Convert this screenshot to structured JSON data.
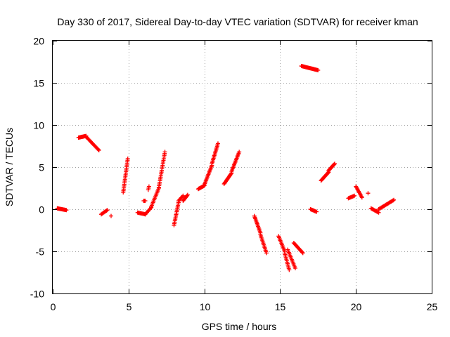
{
  "chart_data": {
    "type": "scatter",
    "title": "Day 330 of 2017, Sidereal Day-to-day VTEC variation (SDTVAR) for receiver kman",
    "xlabel": "GPS time / hours",
    "ylabel": "SDTVAR / TECUs",
    "xlim": [
      0,
      25
    ],
    "ylim": [
      -10,
      20
    ],
    "xticks": [
      0,
      5,
      10,
      15,
      20,
      25
    ],
    "yticks": [
      -10,
      -5,
      0,
      5,
      10,
      15,
      20
    ],
    "xtick_labels": [
      "0",
      "5",
      "10",
      "15",
      "20",
      "25"
    ],
    "ytick_labels": [
      "-10",
      "-5",
      "0",
      "5",
      "10",
      "15",
      "20"
    ],
    "grid": true,
    "marker": "+",
    "series_color": "#ff0000",
    "segments": [
      {
        "x0": 0.3,
        "x1": 0.9,
        "y0": 0.1,
        "y1": -0.1,
        "n": 14
      },
      {
        "x0": 1.7,
        "x1": 2.2,
        "y0": 8.5,
        "y1": 8.7,
        "n": 12
      },
      {
        "x0": 2.2,
        "x1": 3.05,
        "y0": 8.6,
        "y1": 7.0,
        "n": 18
      },
      {
        "x0": 3.2,
        "x1": 3.6,
        "y0": -0.6,
        "y1": -0.1,
        "n": 8
      },
      {
        "x0": 3.85,
        "x1": 3.85,
        "y0": -0.8,
        "y1": -0.8,
        "n": 1
      },
      {
        "x0": 4.65,
        "x1": 4.95,
        "y0": 2.0,
        "y1": 6.0,
        "n": 22
      },
      {
        "x0": 5.6,
        "x1": 6.1,
        "y0": -0.4,
        "y1": -0.6,
        "n": 10
      },
      {
        "x0": 6.0,
        "x1": 6.1,
        "y0": 1.0,
        "y1": 1.0,
        "n": 3
      },
      {
        "x0": 6.3,
        "x1": 6.35,
        "y0": 2.3,
        "y1": 2.7,
        "n": 3
      },
      {
        "x0": 6.1,
        "x1": 6.5,
        "y0": -0.6,
        "y1": 0.2,
        "n": 8
      },
      {
        "x0": 6.5,
        "x1": 7.0,
        "y0": 0.3,
        "y1": 2.5,
        "n": 14
      },
      {
        "x0": 7.0,
        "x1": 7.4,
        "y0": 2.6,
        "y1": 6.8,
        "n": 22
      },
      {
        "x0": 8.0,
        "x1": 8.3,
        "y0": -1.9,
        "y1": 0.8,
        "n": 16
      },
      {
        "x0": 8.3,
        "x1": 8.6,
        "y0": 1.0,
        "y1": 1.6,
        "n": 6
      },
      {
        "x0": 8.6,
        "x1": 8.9,
        "y0": 1.0,
        "y1": 1.7,
        "n": 8
      },
      {
        "x0": 9.6,
        "x1": 10.0,
        "y0": 2.4,
        "y1": 2.8,
        "n": 10
      },
      {
        "x0": 10.0,
        "x1": 10.5,
        "y0": 2.9,
        "y1": 5.2,
        "n": 16
      },
      {
        "x0": 10.5,
        "x1": 10.9,
        "y0": 5.4,
        "y1": 7.8,
        "n": 16
      },
      {
        "x0": 11.3,
        "x1": 11.8,
        "y0": 3.0,
        "y1": 4.3,
        "n": 14
      },
      {
        "x0": 11.8,
        "x1": 12.3,
        "y0": 4.5,
        "y1": 6.8,
        "n": 16
      },
      {
        "x0": 13.3,
        "x1": 13.7,
        "y0": -0.8,
        "y1": -2.8,
        "n": 14
      },
      {
        "x0": 13.7,
        "x1": 14.1,
        "y0": -3.0,
        "y1": -5.2,
        "n": 14
      },
      {
        "x0": 14.9,
        "x1": 15.3,
        "y0": -3.2,
        "y1": -5.0,
        "n": 12
      },
      {
        "x0": 15.3,
        "x1": 15.6,
        "y0": -5.2,
        "y1": -7.2,
        "n": 12
      },
      {
        "x0": 15.5,
        "x1": 16.0,
        "y0": -4.8,
        "y1": -7.0,
        "n": 14
      },
      {
        "x0": 15.9,
        "x1": 16.5,
        "y0": -4.0,
        "y1": -5.2,
        "n": 14
      },
      {
        "x0": 16.4,
        "x1": 17.5,
        "y0": 17.0,
        "y1": 16.5,
        "n": 24
      },
      {
        "x0": 17.0,
        "x1": 17.4,
        "y0": 0.0,
        "y1": -0.3,
        "n": 8
      },
      {
        "x0": 17.7,
        "x1": 18.2,
        "y0": 3.4,
        "y1": 4.4,
        "n": 14
      },
      {
        "x0": 18.2,
        "x1": 18.6,
        "y0": 4.6,
        "y1": 5.4,
        "n": 12
      },
      {
        "x0": 19.5,
        "x1": 19.9,
        "y0": 1.3,
        "y1": 1.6,
        "n": 8
      },
      {
        "x0": 20.0,
        "x1": 20.4,
        "y0": 2.7,
        "y1": 1.4,
        "n": 10
      },
      {
        "x0": 20.8,
        "x1": 20.85,
        "y0": 1.9,
        "y1": 1.9,
        "n": 1
      },
      {
        "x0": 21.0,
        "x1": 21.5,
        "y0": 0.1,
        "y1": -0.4,
        "n": 10
      },
      {
        "x0": 21.5,
        "x1": 22.5,
        "y0": 0.0,
        "y1": 1.1,
        "n": 18
      }
    ]
  }
}
